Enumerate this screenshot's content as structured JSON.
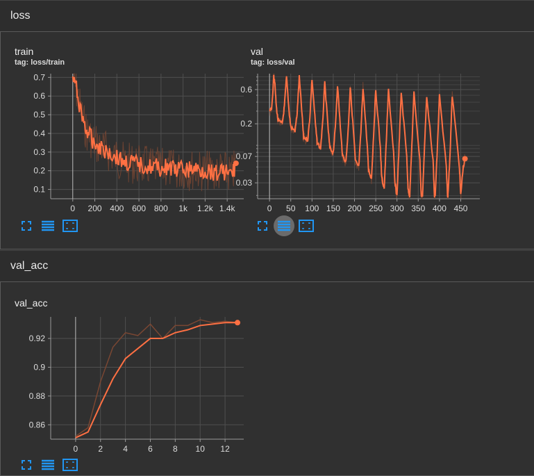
{
  "sections": [
    {
      "title": "loss"
    },
    {
      "title": "val_acc"
    }
  ],
  "cards": {
    "train": {
      "title": "train",
      "tag": "tag: loss/train"
    },
    "val": {
      "title": "val",
      "tag": "tag: loss/val"
    },
    "val_acc": {
      "title": "val_acc",
      "tag": ""
    }
  },
  "colors": {
    "line": "#ff7043",
    "raw": "#7a4733",
    "grid": "#4f4f4f",
    "axis": "#9a9a9a",
    "icon": "#2196f3"
  },
  "icons": [
    "fullscreen-icon",
    "data-table-icon",
    "fit-domain-icon"
  ],
  "chart_data": [
    {
      "type": "line",
      "title": "train",
      "xlabel": "",
      "ylabel": "",
      "xlim": [
        -200,
        1550
      ],
      "ylim": [
        0.05,
        0.72
      ],
      "x_ticks": [
        0,
        200,
        400,
        600,
        800,
        1000,
        1200,
        1400
      ],
      "x_tick_labels": [
        "0",
        "200",
        "400",
        "600",
        "800",
        "1k",
        "1.2k",
        "1.4k"
      ],
      "y_ticks": [
        0.1,
        0.2,
        0.3,
        0.4,
        0.5,
        0.6,
        0.7
      ],
      "y_tick_labels": [
        "0.1",
        "0.2",
        "0.3",
        "0.4",
        "0.5",
        "0.6",
        "0.7"
      ],
      "grid": true,
      "series": [
        {
          "x": [
            0,
            40,
            80,
            120,
            160,
            200,
            250,
            300,
            350,
            400,
            450,
            500,
            550,
            600,
            650,
            700,
            750,
            800,
            850,
            900,
            950,
            1000,
            1050,
            1100,
            1150,
            1200,
            1250,
            1300,
            1350,
            1400,
            1450,
            1480
          ],
          "y": [
            0.7,
            0.62,
            0.5,
            0.42,
            0.38,
            0.35,
            0.33,
            0.31,
            0.29,
            0.27,
            0.25,
            0.24,
            0.24,
            0.23,
            0.23,
            0.22,
            0.22,
            0.21,
            0.22,
            0.21,
            0.2,
            0.21,
            0.2,
            0.21,
            0.2,
            0.2,
            0.2,
            0.19,
            0.2,
            0.19,
            0.18,
            0.24
          ]
        }
      ]
    },
    {
      "type": "line",
      "title": "val",
      "xlabel": "",
      "ylabel": "",
      "log_y": true,
      "xlim": [
        -28,
        495
      ],
      "ylim": [
        0.018,
        1.0
      ],
      "x_ticks": [
        0,
        50,
        100,
        150,
        200,
        250,
        300,
        350,
        400,
        450
      ],
      "x_tick_labels": [
        "0",
        "50",
        "100",
        "150",
        "200",
        "250",
        "300",
        "350",
        "400",
        "450"
      ],
      "y_ticks": [
        0.03,
        0.07,
        0.2,
        0.6
      ],
      "y_tick_labels": [
        "0.03",
        "0.07",
        "0.2",
        "0.6"
      ],
      "grid": true,
      "series": [
        {
          "x": [
            0,
            5,
            10,
            12,
            16,
            20,
            30,
            35,
            40,
            46,
            50,
            60,
            65,
            70,
            77,
            80,
            90,
            95,
            100,
            108,
            112,
            120,
            125,
            130,
            138,
            142,
            150,
            155,
            160,
            168,
            172,
            180,
            185,
            190,
            199,
            202,
            210,
            215,
            220,
            230,
            233,
            240,
            245,
            250,
            261,
            264,
            270,
            275,
            280,
            292,
            295,
            300,
            305,
            310,
            323,
            326,
            330,
            335,
            340,
            354,
            357,
            360,
            365,
            370,
            385,
            388,
            390,
            395,
            400,
            416,
            419,
            420,
            425,
            430,
            447,
            450,
            455,
            460
          ],
          "y": [
            0.3,
            0.32,
            0.9,
            0.8,
            0.35,
            0.22,
            0.2,
            0.35,
            0.9,
            0.3,
            0.18,
            0.16,
            0.28,
            0.9,
            0.25,
            0.13,
            0.12,
            0.25,
            0.85,
            0.2,
            0.11,
            0.09,
            0.2,
            0.75,
            0.17,
            0.09,
            0.08,
            0.18,
            0.7,
            0.14,
            0.07,
            0.06,
            0.16,
            0.65,
            0.12,
            0.06,
            0.05,
            0.15,
            0.65,
            0.1,
            0.045,
            0.035,
            0.14,
            0.6,
            0.09,
            0.035,
            0.025,
            0.12,
            0.6,
            0.08,
            0.03,
            0.02,
            0.1,
            0.55,
            0.07,
            0.025,
            0.02,
            0.1,
            0.55,
            0.06,
            0.02,
            0.02,
            0.1,
            0.5,
            0.06,
            0.02,
            0.02,
            0.09,
            0.5,
            0.05,
            0.02,
            0.02,
            0.08,
            0.5,
            0.05,
            0.02,
            0.045,
            0.065
          ]
        }
      ]
    },
    {
      "type": "line",
      "title": "val_acc",
      "xlabel": "",
      "ylabel": "",
      "xlim": [
        -2,
        13.5
      ],
      "ylim": [
        0.85,
        0.935
      ],
      "x_ticks": [
        0,
        2,
        4,
        6,
        8,
        10,
        12
      ],
      "x_tick_labels": [
        "0",
        "2",
        "4",
        "6",
        "8",
        "10",
        "12"
      ],
      "y_ticks": [
        0.86,
        0.88,
        0.9,
        0.92
      ],
      "y_tick_labels": [
        "0.86",
        "0.88",
        "0.9",
        "0.92"
      ],
      "grid": true,
      "series": [
        {
          "x": [
            0,
            1,
            2,
            3,
            4,
            5,
            6,
            7,
            8,
            9,
            10,
            11,
            12,
            13
          ],
          "y": [
            0.851,
            0.855,
            0.874,
            0.892,
            0.906,
            0.913,
            0.92,
            0.92,
            0.924,
            0.926,
            0.929,
            0.93,
            0.931,
            0.931
          ]
        },
        {
          "x": [
            0,
            1,
            2,
            3,
            4,
            5,
            6,
            7,
            8,
            9,
            10,
            11,
            12,
            13
          ],
          "y": [
            0.852,
            0.858,
            0.89,
            0.914,
            0.924,
            0.922,
            0.93,
            0.92,
            0.929,
            0.929,
            0.933,
            0.931,
            0.932,
            0.931
          ]
        }
      ]
    }
  ]
}
